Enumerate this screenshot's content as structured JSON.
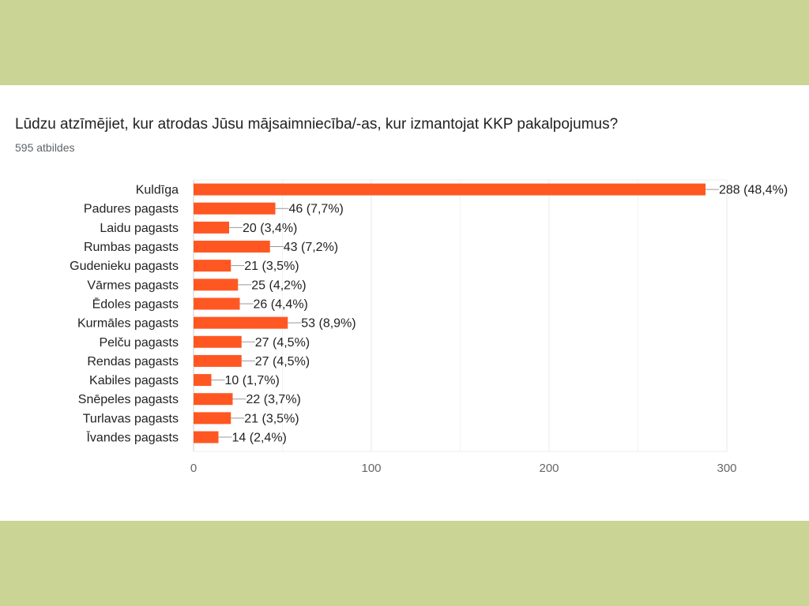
{
  "survey": {
    "question": "Lūdzu atzīmējiet, kur atrodas Jūsu mājsaimniecība/-as, kur izmantojat KKP pakalpojumus?",
    "responses": "595 atbildes"
  },
  "colors": {
    "background_band": "#cad595",
    "panel": "#ffffff",
    "bar": "#ff5722",
    "grid": "#e8e8e8",
    "axis_text": "#666666",
    "label_text": "#222222"
  },
  "chart_data": {
    "type": "bar",
    "orientation": "horizontal",
    "title": "",
    "xlabel": "",
    "ylabel": "",
    "xlim": [
      0,
      300
    ],
    "grid": true,
    "ticks": [
      0,
      100,
      200,
      300
    ],
    "categories": [
      "Kuldīga",
      "Padures pagasts",
      "Laidu pagasts",
      "Rumbas pagasts",
      "Gudenieku pagasts",
      "Vārmes pagasts",
      "Ēdoles pagasts",
      "Kurmāles pagasts",
      "Pelču pagasts",
      "Rendas pagasts",
      "Kabiles pagasts",
      "Snēpeles pagasts",
      "Turlavas pagasts",
      "Īvandes pagasts"
    ],
    "values": [
      288,
      46,
      20,
      43,
      21,
      25,
      26,
      53,
      27,
      27,
      10,
      22,
      21,
      14
    ],
    "data_labels": [
      "288 (48,4%)",
      "46 (7,7%)",
      "20 (3,4%)",
      "43 (7,2%)",
      "21 (3,5%)",
      "25 (4,2%)",
      "26 (4,4%)",
      "53 (8,9%)",
      "27 (4,5%)",
      "27 (4,5%)",
      "10 (1,7%)",
      "22 (3,7%)",
      "21 (3,5%)",
      "14 (2,4%)"
    ]
  }
}
